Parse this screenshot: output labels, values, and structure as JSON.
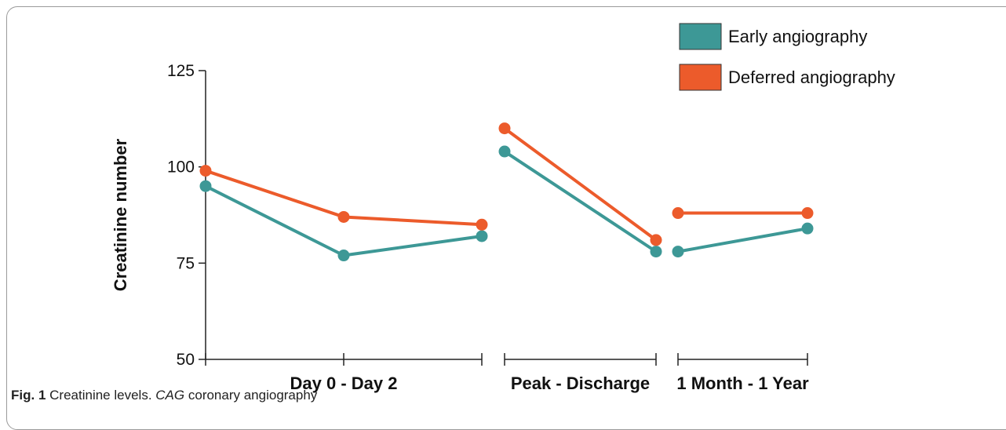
{
  "chart_data": {
    "type": "line",
    "ylabel": "Creatinine number",
    "xlabel": "",
    "ylim": [
      50,
      125
    ],
    "yticks": [
      50,
      75,
      100,
      125
    ],
    "grid": false,
    "legend_placement": "top-right",
    "groups": [
      {
        "label": "Day 0 - Day 2",
        "points": 3
      },
      {
        "label": "Peak - Discharge",
        "points": 2
      },
      {
        "label": "1 Month - 1 Year",
        "points": 2
      }
    ],
    "series": [
      {
        "name": "Early angiography",
        "color": "#3d9896",
        "segments": [
          [
            95,
            77,
            82
          ],
          [
            104,
            78
          ],
          [
            78,
            84
          ]
        ]
      },
      {
        "name": "Deferred angiography",
        "color": "#ec5b2b",
        "segments": [
          [
            99,
            87,
            85
          ],
          [
            110,
            81
          ],
          [
            88,
            88
          ]
        ]
      }
    ]
  },
  "caption": {
    "fig_label": "Fig. 1",
    "text_lead": "Creatinine levels.",
    "abbr": "CAG",
    "text_rest": "coronary angiography"
  }
}
